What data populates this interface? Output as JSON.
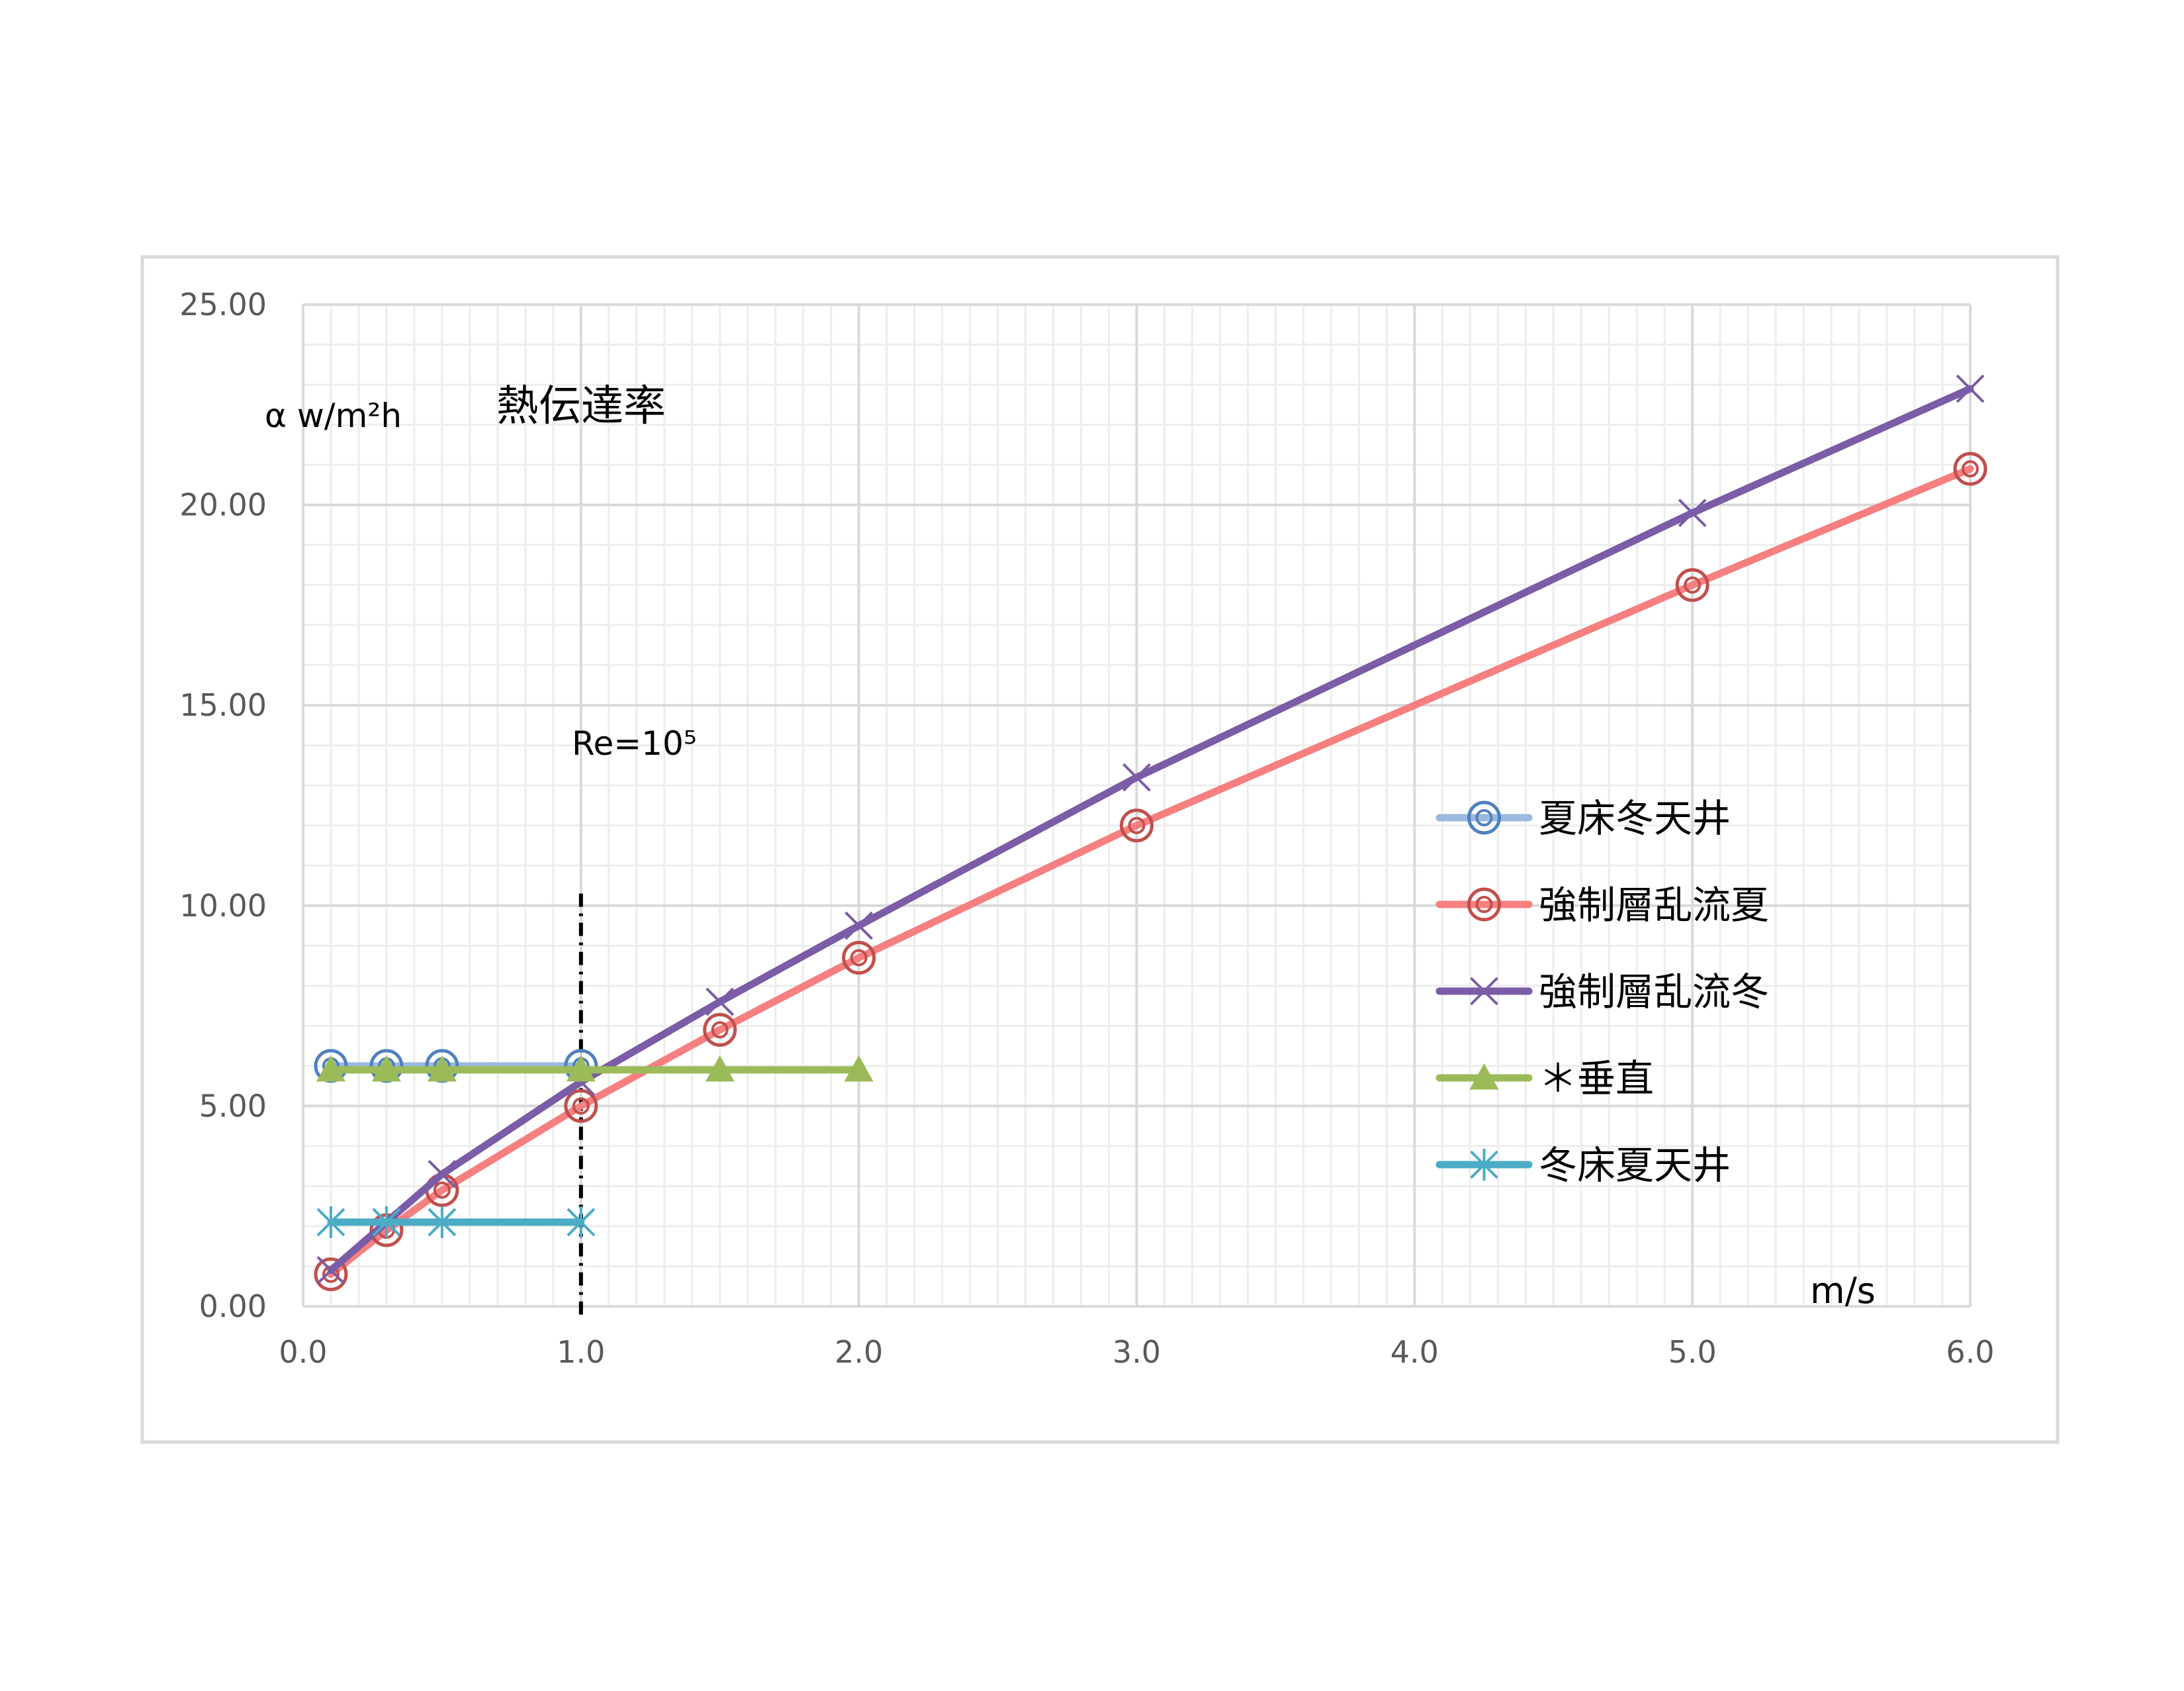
{
  "chart_data": {
    "type": "line",
    "title": "熱伝達率",
    "ylabel": "α w/m²h",
    "xlabel": "m/s",
    "xlim": [
      0,
      6
    ],
    "ylim": [
      0,
      25
    ],
    "x_ticks": [
      "0.0",
      "1.0",
      "2.0",
      "3.0",
      "4.0",
      "5.0",
      "6.0"
    ],
    "y_ticks": [
      "0.00",
      "5.00",
      "10.00",
      "15.00",
      "20.00",
      "25.00"
    ],
    "grid": true,
    "legend_position": "right",
    "annotations": [
      {
        "text": "Re=10⁵",
        "x": 1.0,
        "style": "dash-dot vertical line"
      }
    ],
    "series": [
      {
        "name": "夏床冬天井",
        "color": "#9DB8DE",
        "marker": "double-circle",
        "marker_color": "#4F81BD",
        "x": [
          0.1,
          0.3,
          0.5,
          1.0
        ],
        "y": [
          6.0,
          6.0,
          6.0,
          6.0
        ]
      },
      {
        "name": "強制層乱流夏",
        "color": "#F67F7F",
        "marker": "double-circle",
        "marker_color": "#C0504D",
        "x": [
          0.1,
          0.3,
          0.5,
          1.0,
          1.5,
          2.0,
          3.0,
          5.0,
          6.0
        ],
        "y": [
          0.8,
          1.9,
          2.9,
          5.0,
          6.9,
          8.7,
          12.0,
          18.0,
          20.9
        ]
      },
      {
        "name": "強制層乱流冬",
        "color": "#7B5CA6",
        "marker": "x",
        "marker_color": "#7B5CA6",
        "x": [
          0.1,
          0.3,
          0.5,
          1.0,
          1.5,
          2.0,
          3.0,
          5.0,
          6.0
        ],
        "y": [
          0.9,
          2.1,
          3.3,
          5.6,
          7.6,
          9.5,
          13.2,
          19.8,
          22.9
        ]
      },
      {
        "name": "＊垂直",
        "color": "#9BBB59",
        "marker": "triangle",
        "marker_color": "#9BBB59",
        "x": [
          0.1,
          0.3,
          0.5,
          1.0,
          1.5,
          2.0
        ],
        "y": [
          5.9,
          5.9,
          5.9,
          5.9,
          5.9,
          5.9
        ]
      },
      {
        "name": "冬床夏天井",
        "color": "#4BACC6",
        "marker": "asterisk",
        "marker_color": "#4BACC6",
        "x": [
          0.1,
          0.3,
          0.5,
          1.0
        ],
        "y": [
          2.1,
          2.1,
          2.1,
          2.1
        ]
      }
    ]
  }
}
